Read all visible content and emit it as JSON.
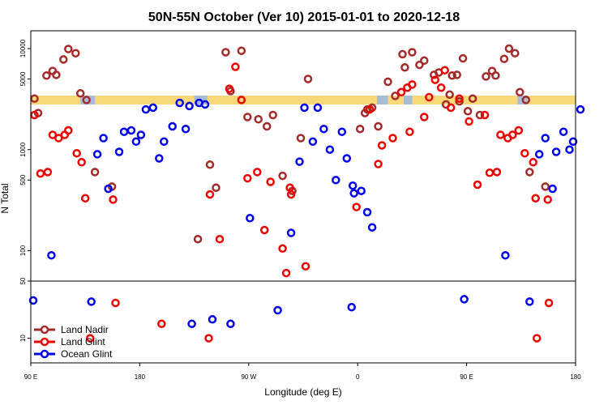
{
  "chart_data": {
    "type": "scatter",
    "title": "50N-55N October (Ver 10)   2015-01-01 to 2020-12-18",
    "xlabel": "Longitude (deg E)",
    "ylabel": "N Total",
    "x_scale": "longitude, 90E at left, wrapping through 180 and 0 to 180",
    "xlim_unwrapped": [
      90,
      540
    ],
    "y_scale": "log",
    "ylim": [
      5,
      15000
    ],
    "ylim_upper_panel": [
      50,
      15000
    ],
    "ylim_lower_panel": [
      5,
      50
    ],
    "x_ticks": [
      {
        "label": "90 E",
        "x": 90
      },
      {
        "label": "180",
        "x": 180
      },
      {
        "label": "90 W",
        "x": 270
      },
      {
        "label": "0",
        "x": 360
      },
      {
        "label": "90 E",
        "x": 450
      },
      {
        "label": "180",
        "x": 540
      }
    ],
    "y_ticks_upper": [
      "10000",
      "5000",
      "1000",
      "500",
      "100",
      "50"
    ],
    "y_ticks_upper_values": [
      10000,
      5000,
      1000,
      500,
      100,
      50
    ],
    "y_ticks_lower": [
      "10"
    ],
    "y_ticks_lower_values": [
      10
    ],
    "legend_position": "bottom-left",
    "series": [
      {
        "name": "Land Nadir",
        "color": "#a52a2a",
        "points": [
          [
            93,
            3200
          ],
          [
            96,
            2300
          ],
          [
            103,
            5400
          ],
          [
            108,
            6000
          ],
          [
            111,
            5500
          ],
          [
            117,
            7800
          ],
          [
            121,
            9900
          ],
          [
            127,
            9000
          ],
          [
            131,
            3600
          ],
          [
            136,
            3100
          ],
          [
            143,
            600
          ],
          [
            157,
            430
          ],
          [
            228,
            130
          ],
          [
            238,
            710
          ],
          [
            243,
            420
          ],
          [
            251,
            9200
          ],
          [
            255,
            3800
          ],
          [
            264,
            9500
          ],
          [
            269,
            2100
          ],
          [
            278,
            2000
          ],
          [
            285,
            1700
          ],
          [
            290,
            2200
          ],
          [
            298,
            550
          ],
          [
            306,
            390
          ],
          [
            313,
            1300
          ],
          [
            319,
            5000
          ],
          [
            362,
            1600
          ],
          [
            366,
            2300
          ],
          [
            368,
            2500
          ],
          [
            372,
            2600
          ],
          [
            377,
            1700
          ],
          [
            385,
            4700
          ],
          [
            391,
            3400
          ],
          [
            397,
            8800
          ],
          [
            399,
            6500
          ],
          [
            405,
            9200
          ],
          [
            411,
            6900
          ],
          [
            415,
            7600
          ],
          [
            423,
            5500
          ],
          [
            427,
            5800
          ],
          [
            433,
            2800
          ],
          [
            436,
            3500
          ],
          [
            438,
            5400
          ],
          [
            442,
            5500
          ],
          [
            444,
            3000
          ],
          [
            447,
            8000
          ],
          [
            451,
            2400
          ],
          [
            455,
            3200
          ],
          [
            461,
            2200
          ],
          [
            466,
            5300
          ],
          [
            471,
            6000
          ],
          [
            474,
            5400
          ],
          [
            481,
            7900
          ],
          [
            485,
            10000
          ],
          [
            490,
            9000
          ],
          [
            494,
            3700
          ],
          [
            499,
            3100
          ],
          [
            502,
            600
          ],
          [
            515,
            430
          ]
        ]
      },
      {
        "name": "Land Glint",
        "color": "#ee0000",
        "points": [
          [
            93,
            2200
          ],
          [
            98,
            580
          ],
          [
            104,
            600
          ],
          [
            108,
            1400
          ],
          [
            113,
            1300
          ],
          [
            118,
            1400
          ],
          [
            121,
            1550
          ],
          [
            128,
            920
          ],
          [
            132,
            750
          ],
          [
            135,
            330
          ],
          [
            139,
            10
          ],
          [
            158,
            320
          ],
          [
            160,
            27
          ],
          [
            198,
            15
          ],
          [
            237,
            10
          ],
          [
            238,
            360
          ],
          [
            246,
            130
          ],
          [
            254,
            4000
          ],
          [
            259,
            6600
          ],
          [
            264,
            3100
          ],
          [
            269,
            520
          ],
          [
            277,
            600
          ],
          [
            283,
            160
          ],
          [
            288,
            480
          ],
          [
            298,
            105
          ],
          [
            301,
            60
          ],
          [
            304,
            420
          ],
          [
            305,
            360
          ],
          [
            317,
            70
          ],
          [
            359,
            270
          ],
          [
            370,
            2500
          ],
          [
            377,
            720
          ],
          [
            380,
            1100
          ],
          [
            389,
            1300
          ],
          [
            396,
            3700
          ],
          [
            401,
            4100
          ],
          [
            403,
            1500
          ],
          [
            405,
            4400
          ],
          [
            415,
            2100
          ],
          [
            419,
            3300
          ],
          [
            424,
            4900
          ],
          [
            429,
            4100
          ],
          [
            432,
            6100
          ],
          [
            437,
            2600
          ],
          [
            444,
            3200
          ],
          [
            452,
            1900
          ],
          [
            459,
            450
          ],
          [
            465,
            2200
          ],
          [
            469,
            590
          ],
          [
            475,
            600
          ],
          [
            478,
            1400
          ],
          [
            484,
            1300
          ],
          [
            488,
            1400
          ],
          [
            493,
            1550
          ],
          [
            498,
            920
          ],
          [
            505,
            750
          ],
          [
            507,
            330
          ],
          [
            508,
            10
          ],
          [
            517,
            320
          ],
          [
            518,
            27
          ]
        ]
      },
      {
        "name": "Ocean Glint",
        "color": "#0000ee",
        "points": [
          [
            92,
            29
          ],
          [
            107,
            90
          ],
          [
            140,
            28
          ],
          [
            145,
            900
          ],
          [
            150,
            1300
          ],
          [
            154,
            410
          ],
          [
            163,
            950
          ],
          [
            167,
            1500
          ],
          [
            173,
            1550
          ],
          [
            177,
            1200
          ],
          [
            181,
            1400
          ],
          [
            185,
            2500
          ],
          [
            191,
            2600
          ],
          [
            196,
            820
          ],
          [
            200,
            1200
          ],
          [
            207,
            1700
          ],
          [
            213,
            2900
          ],
          [
            218,
            1600
          ],
          [
            221,
            2700
          ],
          [
            223,
            15
          ],
          [
            229,
            2900
          ],
          [
            234,
            2800
          ],
          [
            240,
            17
          ],
          [
            255,
            15
          ],
          [
            271,
            210
          ],
          [
            294,
            22
          ],
          [
            305,
            150
          ],
          [
            312,
            760
          ],
          [
            316,
            2600
          ],
          [
            323,
            1200
          ],
          [
            327,
            2600
          ],
          [
            332,
            1600
          ],
          [
            337,
            1000
          ],
          [
            342,
            500
          ],
          [
            347,
            1500
          ],
          [
            351,
            820
          ],
          [
            355,
            24
          ],
          [
            356,
            440
          ],
          [
            357,
            370
          ],
          [
            363,
            390
          ],
          [
            368,
            240
          ],
          [
            372,
            170
          ],
          [
            448,
            30
          ],
          [
            482,
            90
          ],
          [
            502,
            28
          ],
          [
            510,
            900
          ],
          [
            515,
            1300
          ],
          [
            521,
            410
          ],
          [
            524,
            950
          ],
          [
            530,
            1500
          ],
          [
            535,
            1000
          ],
          [
            538,
            1200
          ],
          [
            544,
            2500
          ]
        ]
      }
    ]
  },
  "terrain_strip": {
    "land_color": "#f8d878",
    "ocean_color": "#a8bcd8"
  }
}
